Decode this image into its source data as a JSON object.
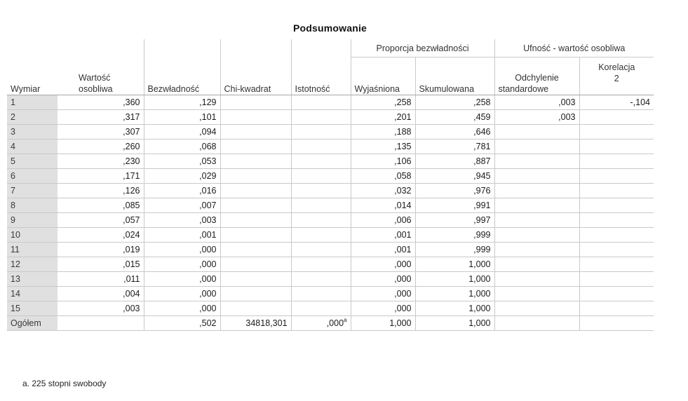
{
  "title": "Podsumowanie",
  "groups": {
    "inertia_proportion": "Proporcja bezwładności",
    "confidence": "Ufność - wartość osobliwa"
  },
  "columns": {
    "dimension": "Wymiar",
    "singular_value_line1": "Wartość",
    "singular_value_line2": "osobliwa",
    "inertia": "Bezwładność",
    "chi_square": "Chi-kwadrat",
    "significance": "Istotność",
    "explained": "Wyjaśniona",
    "cumulative": "Skumulowana",
    "std_dev_line1": "Odchylenie",
    "std_dev_line2": "standardowe",
    "correlation_line1": "Korelacja",
    "correlation_line2": "2"
  },
  "rows": [
    {
      "dim": "1",
      "sv": ",360",
      "inertia": ",129",
      "chi": "",
      "sig": "",
      "explained": ",258",
      "cumulative": ",258",
      "sd": ",003",
      "corr": "-,104"
    },
    {
      "dim": "2",
      "sv": ",317",
      "inertia": ",101",
      "chi": "",
      "sig": "",
      "explained": ",201",
      "cumulative": ",459",
      "sd": ",003",
      "corr": ""
    },
    {
      "dim": "3",
      "sv": ",307",
      "inertia": ",094",
      "chi": "",
      "sig": "",
      "explained": ",188",
      "cumulative": ",646",
      "sd": "",
      "corr": ""
    },
    {
      "dim": "4",
      "sv": ",260",
      "inertia": ",068",
      "chi": "",
      "sig": "",
      "explained": ",135",
      "cumulative": ",781",
      "sd": "",
      "corr": ""
    },
    {
      "dim": "5",
      "sv": ",230",
      "inertia": ",053",
      "chi": "",
      "sig": "",
      "explained": ",106",
      "cumulative": ",887",
      "sd": "",
      "corr": ""
    },
    {
      "dim": "6",
      "sv": ",171",
      "inertia": ",029",
      "chi": "",
      "sig": "",
      "explained": ",058",
      "cumulative": ",945",
      "sd": "",
      "corr": ""
    },
    {
      "dim": "7",
      "sv": ",126",
      "inertia": ",016",
      "chi": "",
      "sig": "",
      "explained": ",032",
      "cumulative": ",976",
      "sd": "",
      "corr": ""
    },
    {
      "dim": "8",
      "sv": ",085",
      "inertia": ",007",
      "chi": "",
      "sig": "",
      "explained": ",014",
      "cumulative": ",991",
      "sd": "",
      "corr": ""
    },
    {
      "dim": "9",
      "sv": ",057",
      "inertia": ",003",
      "chi": "",
      "sig": "",
      "explained": ",006",
      "cumulative": ",997",
      "sd": "",
      "corr": ""
    },
    {
      "dim": "10",
      "sv": ",024",
      "inertia": ",001",
      "chi": "",
      "sig": "",
      "explained": ",001",
      "cumulative": ",999",
      "sd": "",
      "corr": ""
    },
    {
      "dim": "11",
      "sv": ",019",
      "inertia": ",000",
      "chi": "",
      "sig": "",
      "explained": ",001",
      "cumulative": ",999",
      "sd": "",
      "corr": ""
    },
    {
      "dim": "12",
      "sv": ",015",
      "inertia": ",000",
      "chi": "",
      "sig": "",
      "explained": ",000",
      "cumulative": "1,000",
      "sd": "",
      "corr": ""
    },
    {
      "dim": "13",
      "sv": ",011",
      "inertia": ",000",
      "chi": "",
      "sig": "",
      "explained": ",000",
      "cumulative": "1,000",
      "sd": "",
      "corr": ""
    },
    {
      "dim": "14",
      "sv": ",004",
      "inertia": ",000",
      "chi": "",
      "sig": "",
      "explained": ",000",
      "cumulative": "1,000",
      "sd": "",
      "corr": ""
    },
    {
      "dim": "15",
      "sv": ",003",
      "inertia": ",000",
      "chi": "",
      "sig": "",
      "explained": ",000",
      "cumulative": "1,000",
      "sd": "",
      "corr": ""
    }
  ],
  "total": {
    "label": "Ogółem",
    "sv": "",
    "inertia": ",502",
    "chi": "34818,301",
    "sig": ",000",
    "sig_sup": "a",
    "explained": "1,000",
    "cumulative": "1,000",
    "sd": "",
    "corr": ""
  },
  "footnote": "a. 225 stopni swobody"
}
